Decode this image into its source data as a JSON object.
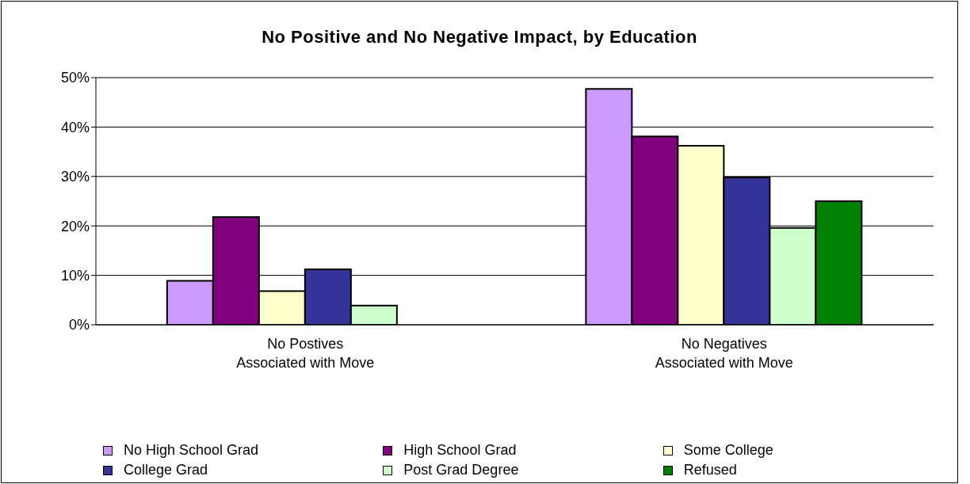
{
  "chart_data": {
    "type": "bar",
    "title": "No Positive and No Negative Impact, by Education",
    "categories": [
      "No Postives\nAssociated with Move",
      "No Negatives\nAssociated with Move"
    ],
    "series": [
      {
        "name": "No High School Grad",
        "color": "#cc99ff",
        "values": [
          8.9,
          47.7
        ]
      },
      {
        "name": "High School Grad",
        "color": "#800080",
        "values": [
          21.8,
          38.1
        ]
      },
      {
        "name": "Some College",
        "color": "#ffffcc",
        "values": [
          6.8,
          36.2
        ]
      },
      {
        "name": "College Grad",
        "color": "#333399",
        "values": [
          11.2,
          29.8
        ]
      },
      {
        "name": "Post Grad Degree",
        "color": "#ccffcc",
        "values": [
          3.9,
          19.6
        ]
      },
      {
        "name": "Refused",
        "color": "#008000",
        "values": [
          null,
          25.0
        ]
      }
    ],
    "ylim": [
      0,
      50
    ],
    "yticks": [
      {
        "value": 0,
        "label": "0%"
      },
      {
        "value": 10,
        "label": "10%"
      },
      {
        "value": 20,
        "label": "20%"
      },
      {
        "value": 30,
        "label": "30%"
      },
      {
        "value": 40,
        "label": "40%"
      },
      {
        "value": 50,
        "label": "50%"
      }
    ],
    "grid": "y",
    "legend": "bottom"
  }
}
